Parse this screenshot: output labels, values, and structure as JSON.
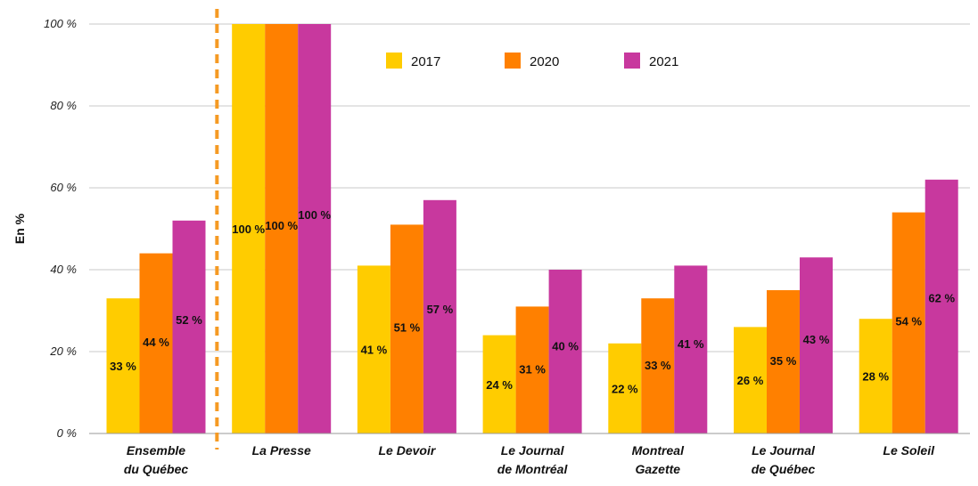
{
  "chart_data": {
    "type": "bar",
    "ylabel": "En %",
    "ylim": [
      0,
      100
    ],
    "yticks": [
      {
        "v": 0,
        "label": "0 %"
      },
      {
        "v": 20,
        "label": "20 %"
      },
      {
        "v": 40,
        "label": "40 %"
      },
      {
        "v": 60,
        "label": "60 %"
      },
      {
        "v": 80,
        "label": "80 %"
      },
      {
        "v": 100,
        "label": "100 %"
      }
    ],
    "grid": true,
    "legend_position": "top-center",
    "categories": [
      [
        "Ensemble",
        "du Québec"
      ],
      [
        "La Presse"
      ],
      [
        "Le Devoir"
      ],
      [
        "Le Journal",
        "de Montréal"
      ],
      [
        "Montreal",
        "Gazette"
      ],
      [
        "Le Journal",
        "de Québec"
      ],
      [
        "Le Soleil"
      ]
    ],
    "series": [
      {
        "name": "2017",
        "color": "#FFCC00",
        "values": [
          33,
          100,
          41,
          24,
          22,
          26,
          28
        ],
        "labels": [
          "33 %",
          "100 %",
          "41 %",
          "24 %",
          "22 %",
          "26 %",
          "28 %"
        ]
      },
      {
        "name": "2020",
        "color": "#FF8000",
        "values": [
          44,
          100,
          51,
          31,
          33,
          35,
          54
        ],
        "labels": [
          "44 %",
          "100 %",
          "51 %",
          "31 %",
          "33 %",
          "35 %",
          "54 %"
        ]
      },
      {
        "name": "2021",
        "color": "#C8389E",
        "values": [
          52,
          100,
          57,
          40,
          41,
          43,
          62
        ],
        "labels": [
          "52 %",
          "100 %",
          "57 %",
          "40 %",
          "41 %",
          "43 %",
          "62 %"
        ]
      }
    ],
    "separator_after_category": 0,
    "separator_color": "#F59A23"
  }
}
